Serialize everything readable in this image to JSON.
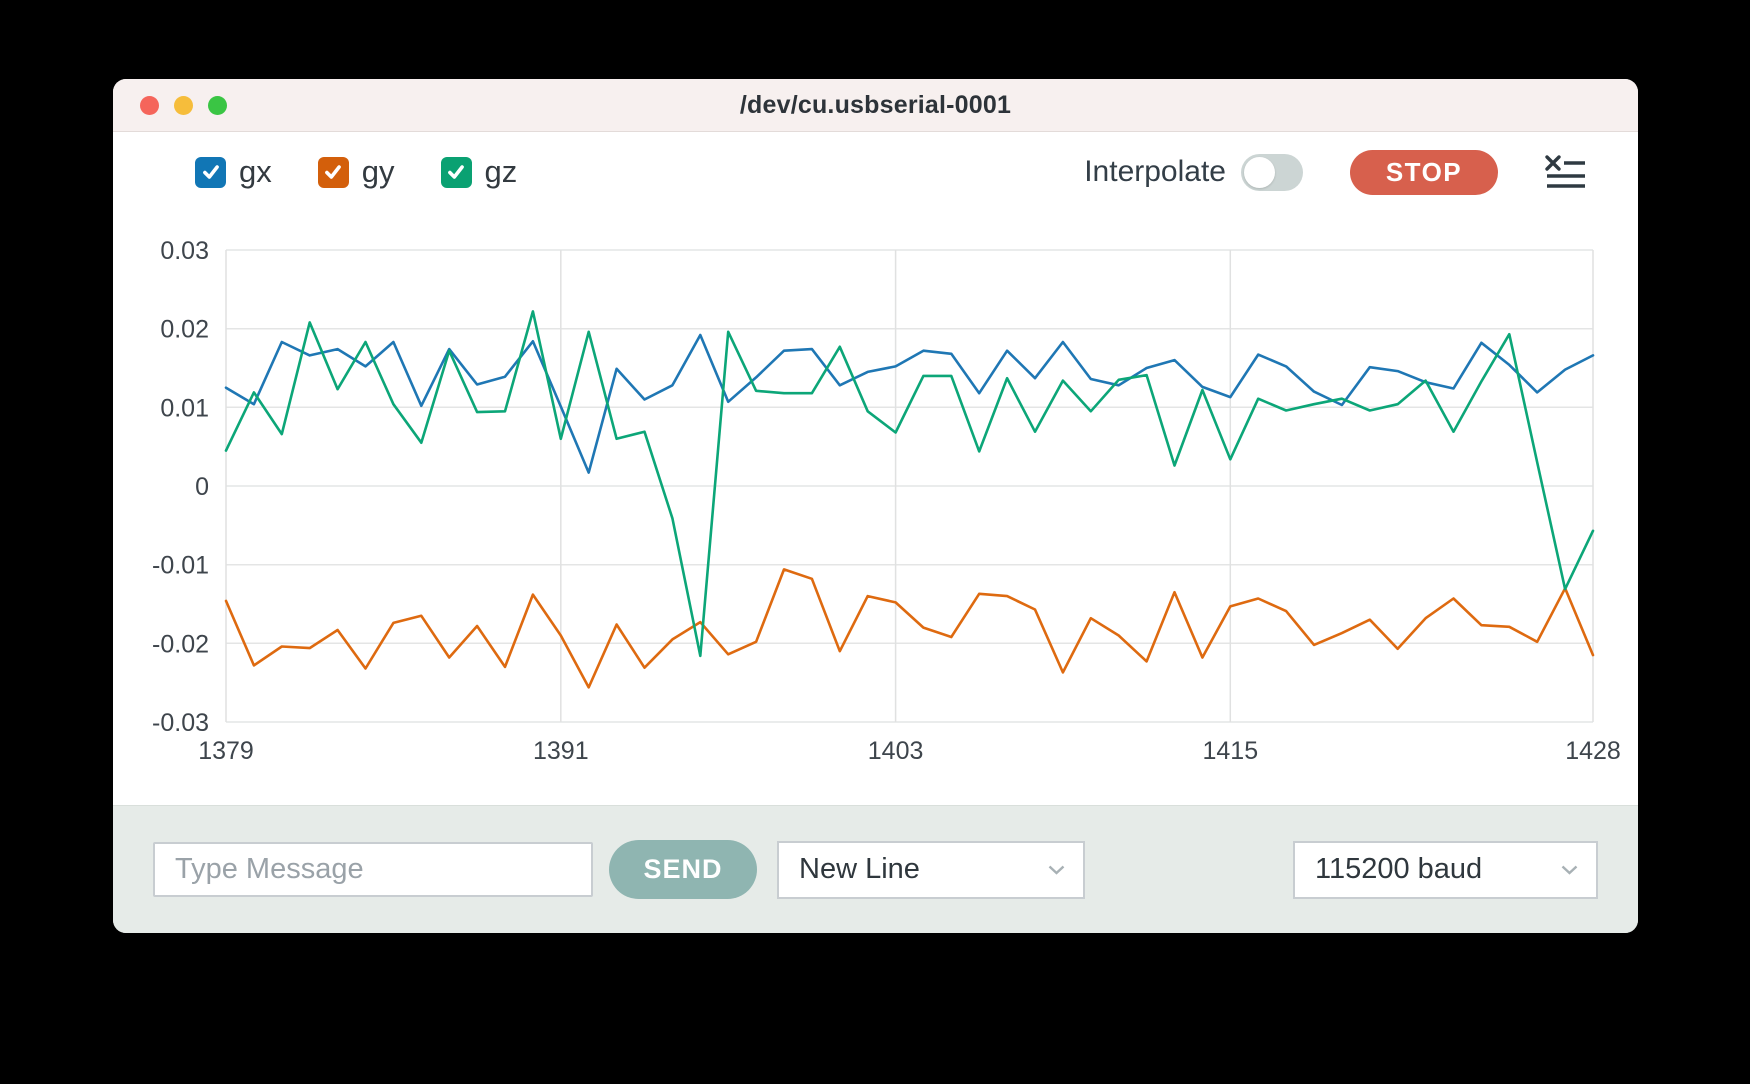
{
  "window": {
    "title": "/dev/cu.usbserial-0001"
  },
  "colors": {
    "traffic_red": "#f5655b",
    "traffic_yellow": "#f6bd3b",
    "traffic_green": "#3ac544",
    "stop_button": "#d7604d",
    "send_button": "#8fb5b1",
    "titlebar_bg": "#f7f0ef",
    "footer_bg": "#e6ebe8"
  },
  "toolbar": {
    "series_toggles": [
      {
        "label": "gx",
        "color": "#1176b5",
        "checked": true
      },
      {
        "label": "gy",
        "color": "#d35f0b",
        "checked": true
      },
      {
        "label": "gz",
        "color": "#0aa172",
        "checked": true
      }
    ],
    "interpolate_label": "Interpolate",
    "interpolate_on": false,
    "stop_label": "STOP"
  },
  "chart_data": {
    "type": "line",
    "title": "",
    "xlabel": "",
    "ylabel": "",
    "xlim": [
      1379,
      1428
    ],
    "ylim": [
      -0.03,
      0.03
    ],
    "grid": true,
    "legend_position": "top-left-toolbar",
    "xticks": [
      1379,
      1391,
      1403,
      1415,
      1428
    ],
    "yticks": [
      {
        "v": 0.03,
        "label": "0.03"
      },
      {
        "v": 0.02,
        "label": "0.02"
      },
      {
        "v": 0.01,
        "label": "0.01"
      },
      {
        "v": 0,
        "label": "0"
      },
      {
        "v": -0.01,
        "label": "-0.01"
      },
      {
        "v": -0.02,
        "label": "-0.02"
      },
      {
        "v": -0.03,
        "label": "-0.03"
      }
    ],
    "x": [
      1379,
      1380,
      1381,
      1382,
      1383,
      1384,
      1385,
      1386,
      1387,
      1388,
      1389,
      1390,
      1391,
      1392,
      1393,
      1394,
      1395,
      1396,
      1397,
      1398,
      1399,
      1400,
      1401,
      1402,
      1403,
      1404,
      1405,
      1406,
      1407,
      1408,
      1409,
      1410,
      1411,
      1412,
      1413,
      1414,
      1415,
      1416,
      1417,
      1418,
      1419,
      1420,
      1421,
      1422,
      1423,
      1424,
      1425,
      1426,
      1427,
      1428
    ],
    "series": [
      {
        "name": "gx",
        "color": "#1f77b4",
        "values": [
          0.0125,
          0.0104,
          0.0183,
          0.0166,
          0.0174,
          0.0152,
          0.0183,
          0.0102,
          0.0174,
          0.0129,
          0.0139,
          0.0184,
          0.0101,
          0.0017,
          0.0149,
          0.011,
          0.0128,
          0.0192,
          0.0107,
          0.0138,
          0.0172,
          0.0174,
          0.0128,
          0.0145,
          0.0152,
          0.0172,
          0.0168,
          0.0118,
          0.0172,
          0.0137,
          0.0183,
          0.0136,
          0.0128,
          0.015,
          0.016,
          0.0126,
          0.0113,
          0.0167,
          0.0152,
          0.012,
          0.0103,
          0.0151,
          0.0146,
          0.0132,
          0.0124,
          0.0182,
          0.0154,
          0.0119,
          0.0148,
          0.0166
        ]
      },
      {
        "name": "gy",
        "color": "#de6a10",
        "values": [
          -0.0146,
          -0.0228,
          -0.0204,
          -0.0206,
          -0.0183,
          -0.0232,
          -0.0174,
          -0.0165,
          -0.0218,
          -0.0178,
          -0.023,
          -0.0138,
          -0.019,
          -0.0256,
          -0.0176,
          -0.0231,
          -0.0195,
          -0.0173,
          -0.0214,
          -0.0198,
          -0.0106,
          -0.0118,
          -0.021,
          -0.014,
          -0.0148,
          -0.018,
          -0.0192,
          -0.0137,
          -0.014,
          -0.0157,
          -0.0237,
          -0.0168,
          -0.019,
          -0.0223,
          -0.0135,
          -0.0218,
          -0.0153,
          -0.0143,
          -0.0159,
          -0.0202,
          -0.0187,
          -0.017,
          -0.0207,
          -0.0168,
          -0.0143,
          -0.0177,
          -0.0179,
          -0.0198,
          -0.013,
          -0.0215
        ]
      },
      {
        "name": "gz",
        "color": "#0ca678",
        "values": [
          0.0045,
          0.0119,
          0.0066,
          0.0208,
          0.0123,
          0.0183,
          0.0104,
          0.0055,
          0.0172,
          0.0094,
          0.0095,
          0.0222,
          0.006,
          0.0196,
          0.006,
          0.0069,
          -0.0041,
          -0.0216,
          0.0196,
          0.0121,
          0.0118,
          0.0118,
          0.0177,
          0.0095,
          0.0068,
          0.014,
          0.014,
          0.0044,
          0.0137,
          0.0069,
          0.0134,
          0.0095,
          0.0135,
          0.0141,
          0.0026,
          0.0122,
          0.0034,
          0.0111,
          0.0096,
          0.0104,
          0.0111,
          0.0096,
          0.0104,
          0.0134,
          0.0069,
          0.0133,
          0.0193,
          0.003,
          -0.0131,
          -0.0057
        ]
      }
    ]
  },
  "footer": {
    "message_placeholder": "Type Message",
    "send_label": "SEND",
    "line_ending_value": "New Line",
    "baud_value": "115200 baud"
  }
}
